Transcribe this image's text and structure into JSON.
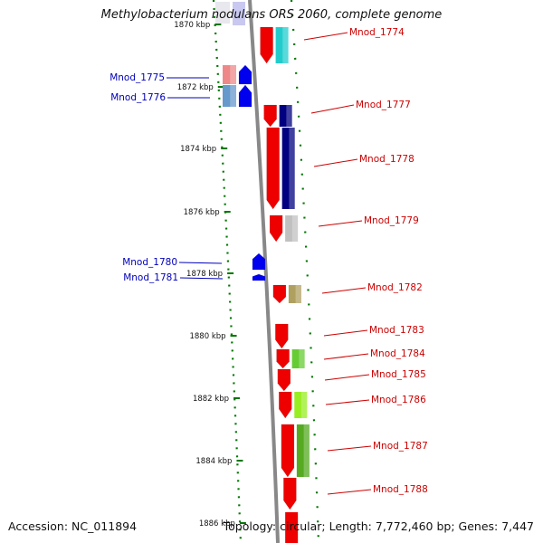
{
  "title": "Methylobacterium nodulans ORS 2060, complete genome",
  "accession": "Accession: NC_011894",
  "summary": "Topology: circular; Length: 7,772,460 bp; Genes: 7,447",
  "colors": {
    "plus_label": "#cc0000",
    "minus_label": "#0000bb",
    "backbone": "#888888",
    "tick": "#007700"
  },
  "scale": {
    "ticks": [
      {
        "label": "1870 kbp"
      },
      {
        "label": "1872 kbp"
      },
      {
        "label": "1874 kbp"
      },
      {
        "label": "1876 kbp"
      },
      {
        "label": "1878 kbp"
      },
      {
        "label": "1880 kbp"
      },
      {
        "label": "1882 kbp"
      },
      {
        "label": "1884 kbp"
      },
      {
        "label": "1886 kbp"
      }
    ]
  },
  "genes": [
    {
      "name": "Mnod_1774",
      "strand": "+"
    },
    {
      "name": "Mnod_1775",
      "strand": "-"
    },
    {
      "name": "Mnod_1776",
      "strand": "-"
    },
    {
      "name": "Mnod_1777",
      "strand": "+"
    },
    {
      "name": "Mnod_1778",
      "strand": "+"
    },
    {
      "name": "Mnod_1779",
      "strand": "+"
    },
    {
      "name": "Mnod_1780",
      "strand": "-"
    },
    {
      "name": "Mnod_1781",
      "strand": "-"
    },
    {
      "name": "Mnod_1782",
      "strand": "+"
    },
    {
      "name": "Mnod_1783",
      "strand": "+"
    },
    {
      "name": "Mnod_1784",
      "strand": "+"
    },
    {
      "name": "Mnod_1785",
      "strand": "+"
    },
    {
      "name": "Mnod_1786",
      "strand": "+"
    },
    {
      "name": "Mnod_1787",
      "strand": "+"
    },
    {
      "name": "Mnod_1788",
      "strand": "+"
    }
  ]
}
